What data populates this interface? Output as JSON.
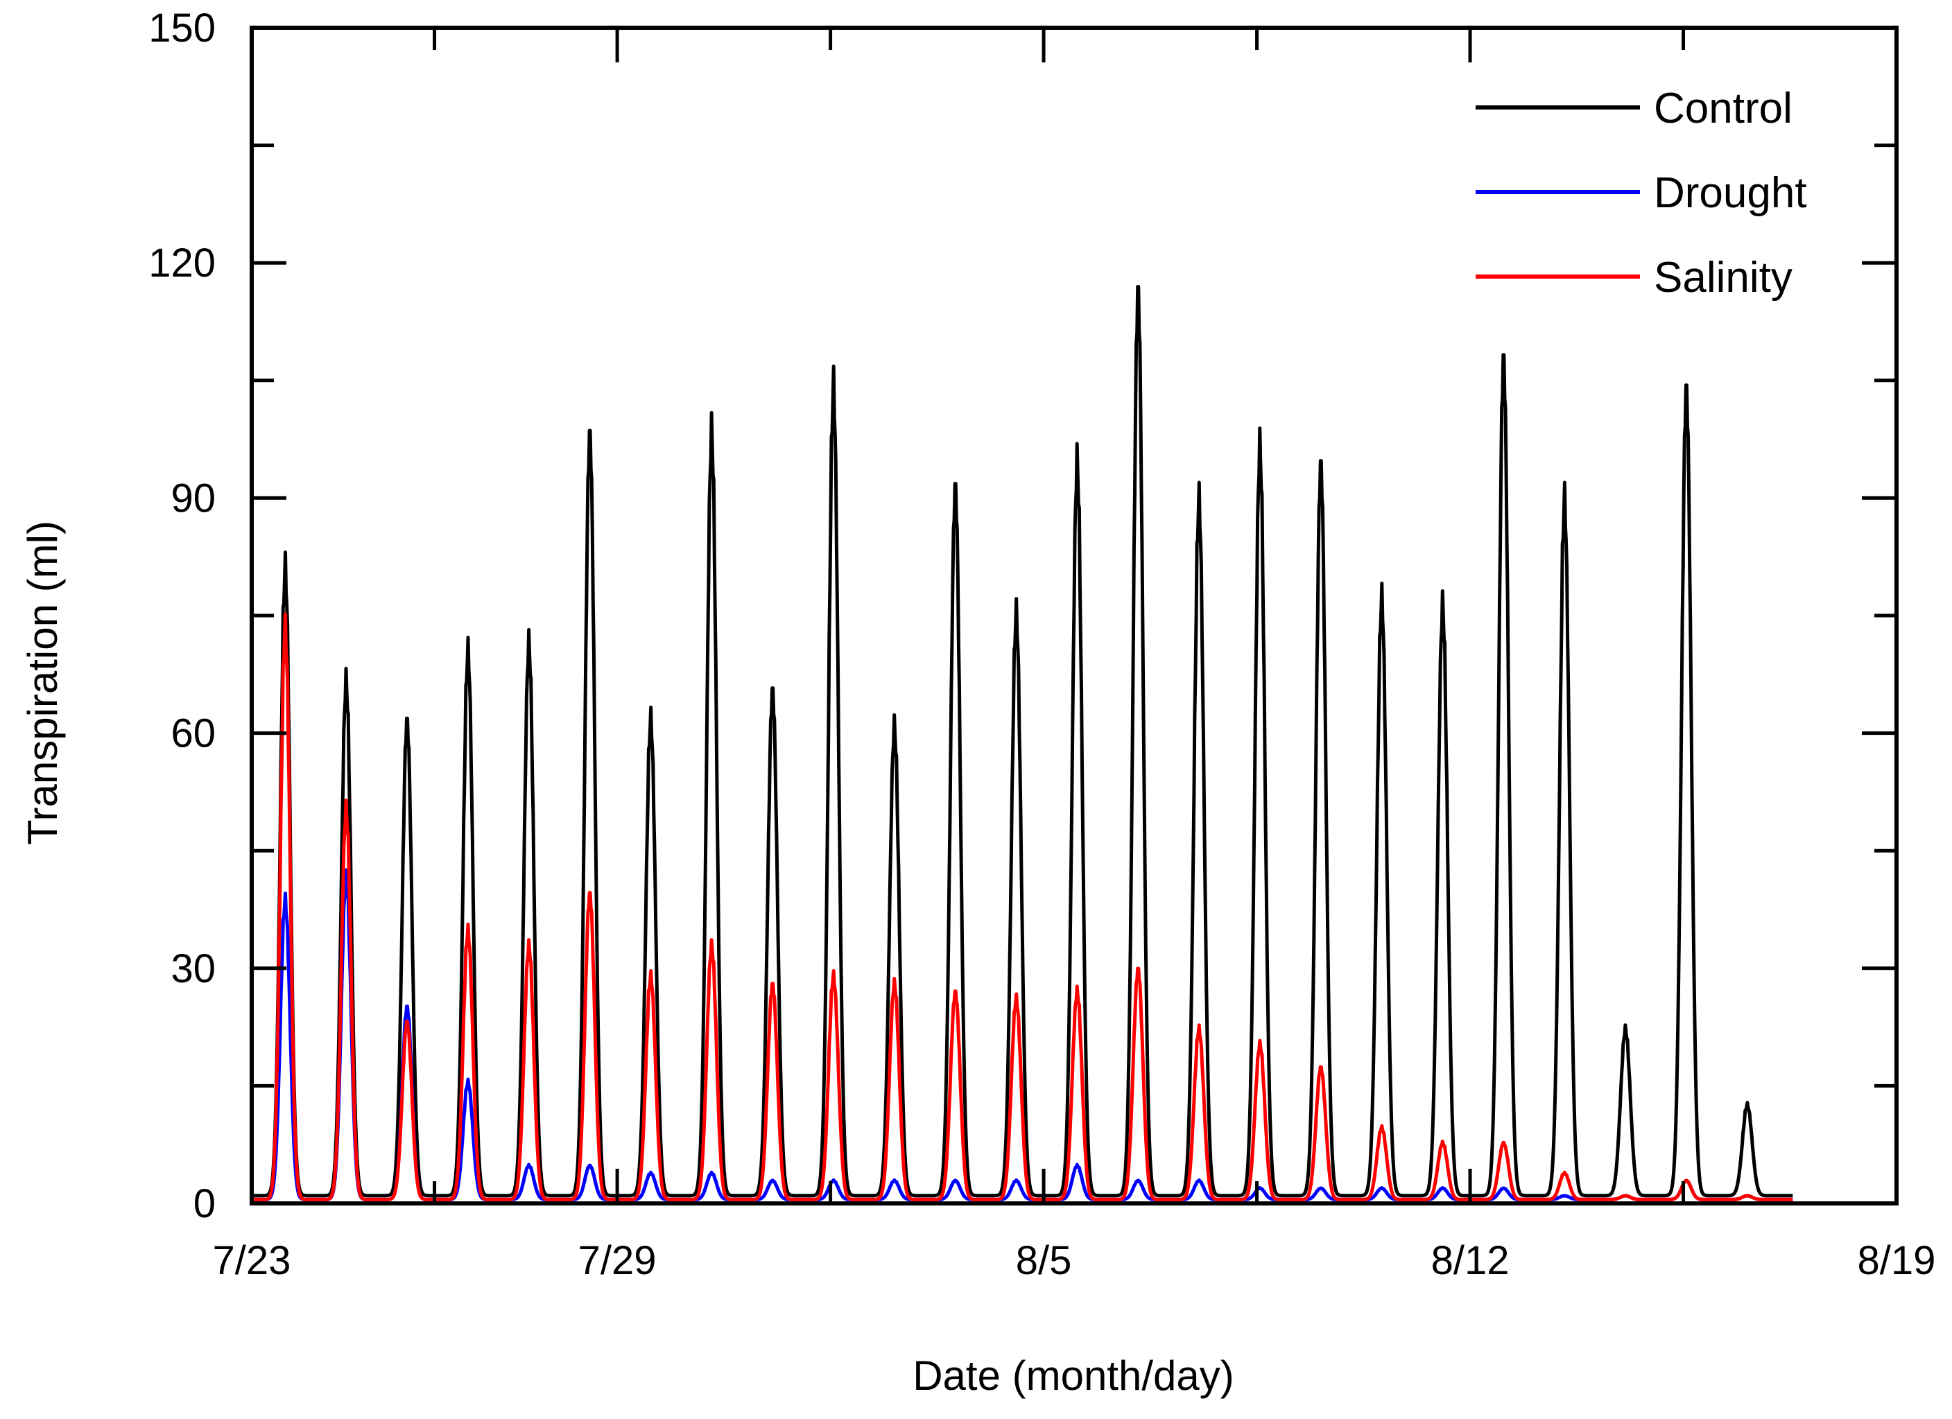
{
  "chart_data": {
    "type": "line",
    "title": "",
    "xlabel": "Date (month/day)",
    "ylabel": "Transpiration (ml)",
    "xlim": [
      0,
      27
    ],
    "ylim": [
      0,
      150
    ],
    "x_unit": "days since 7/23",
    "x_ticks": [
      {
        "value": 0,
        "label": "7/23"
      },
      {
        "value": 6,
        "label": "7/29"
      },
      {
        "value": 13,
        "label": "8/5"
      },
      {
        "value": 20,
        "label": "8/12"
      },
      {
        "value": 27,
        "label": "8/19"
      }
    ],
    "y_ticks": [
      {
        "value": 0,
        "label": "0"
      },
      {
        "value": 30,
        "label": "30"
      },
      {
        "value": 60,
        "label": "60"
      },
      {
        "value": 90,
        "label": "90"
      },
      {
        "value": 120,
        "label": "120"
      },
      {
        "value": 150,
        "label": "150"
      }
    ],
    "legend_position": "top-right",
    "series": [
      {
        "name": "Control",
        "color": "#000000",
        "baseline": 1,
        "peak_days": [
          0.55,
          1.55,
          2.55,
          3.55,
          4.55,
          5.55,
          6.55,
          7.55,
          8.55,
          9.55,
          10.55,
          11.55,
          12.55,
          13.55,
          14.55,
          15.55,
          16.55,
          17.55,
          18.55,
          19.55,
          20.55,
          21.55,
          22.55,
          23.55,
          24.55
        ],
        "peak_values": [
          84,
          69,
          64,
          73,
          74,
          102,
          64,
          102,
          68,
          108,
          63,
          95,
          78,
          98,
          121,
          93,
          100,
          98,
          80,
          79,
          112,
          93,
          23,
          108,
          13
        ]
      },
      {
        "name": "Drought",
        "color": "#0000ff",
        "baseline": 0.5,
        "peak_days": [
          0.55,
          1.55,
          2.55,
          3.55,
          4.55,
          5.55,
          6.55,
          7.55,
          8.55,
          9.55,
          10.55,
          11.55,
          12.55,
          13.55,
          14.55,
          15.55,
          16.55,
          17.55,
          18.55,
          19.55,
          20.55,
          21.55,
          22.55,
          23.55,
          24.55
        ],
        "peak_values": [
          40,
          43,
          26,
          16,
          5,
          5,
          4,
          4,
          3,
          3,
          3,
          3,
          3,
          5,
          3,
          3,
          2,
          2,
          2,
          2,
          2,
          1,
          1,
          3,
          1
        ]
      },
      {
        "name": "Salinity",
        "color": "#ff0000",
        "baseline": 0.5,
        "peak_days": [
          0.55,
          1.55,
          2.55,
          3.55,
          4.55,
          5.55,
          6.55,
          7.55,
          8.55,
          9.55,
          10.55,
          11.55,
          12.55,
          13.55,
          14.55,
          15.55,
          16.55,
          17.55,
          18.55,
          19.55,
          20.55,
          21.55,
          22.55,
          23.55,
          24.55
        ],
        "peak_values": [
          76,
          52,
          24,
          36,
          34,
          41,
          30,
          34,
          29,
          30,
          29,
          28,
          27,
          28,
          31,
          23,
          21,
          18,
          10,
          8,
          8,
          4,
          1,
          3,
          1
        ]
      }
    ]
  }
}
